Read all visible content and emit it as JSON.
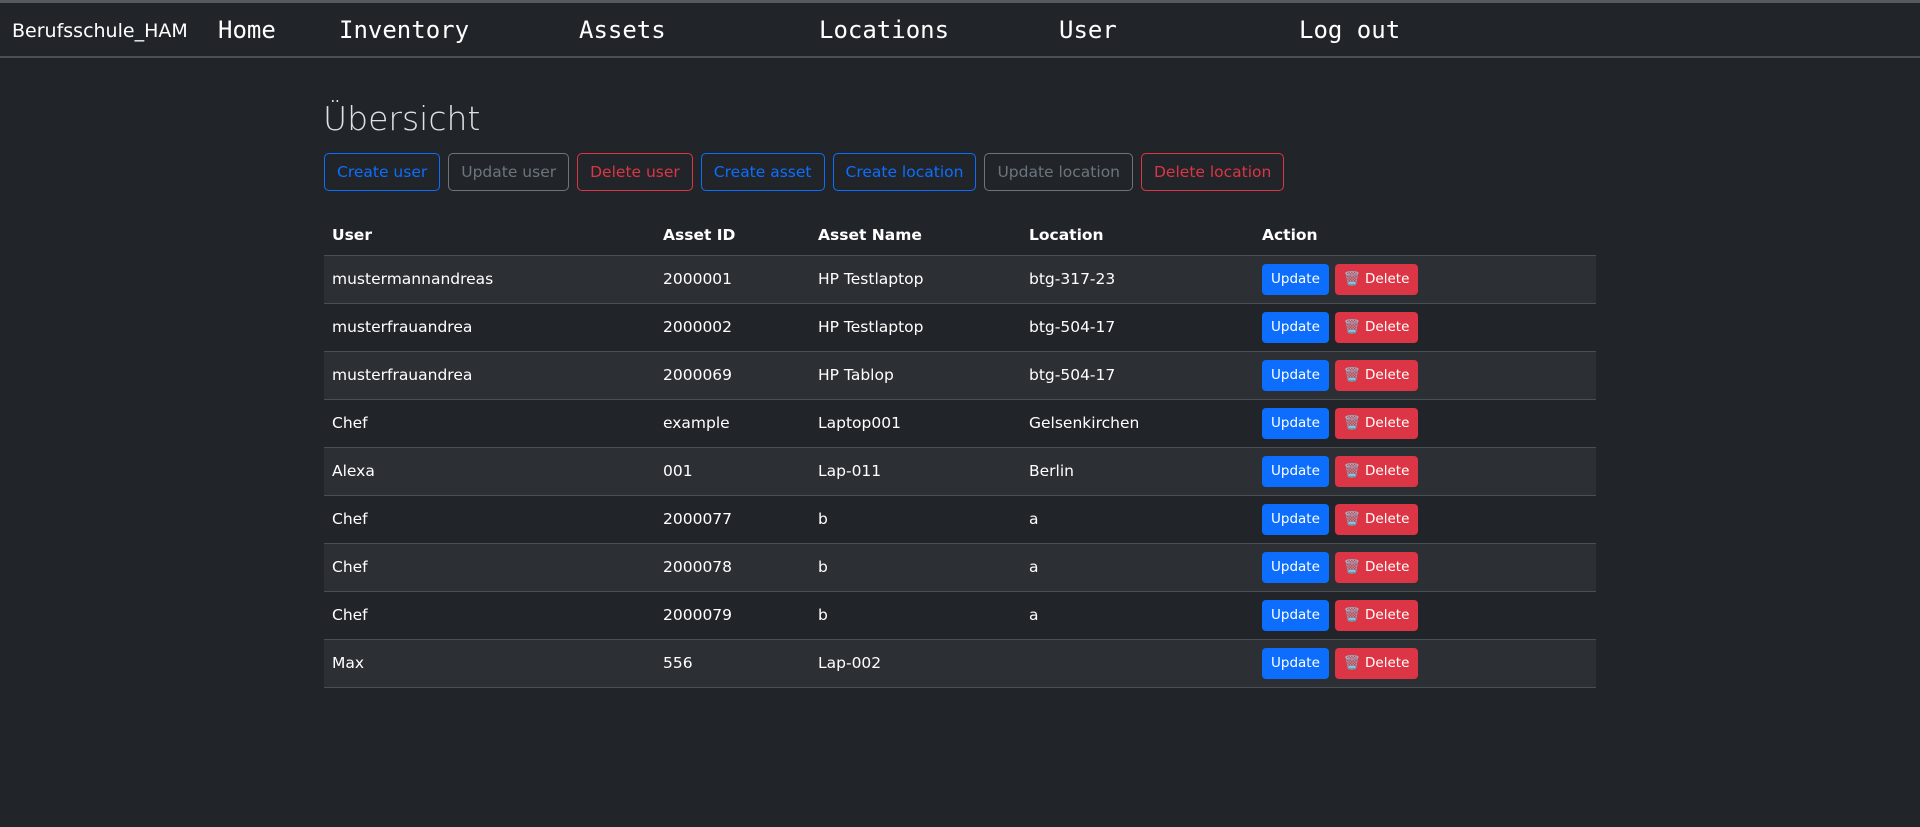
{
  "nav": {
    "brand": "Berufsschule_HAM",
    "links": [
      "Home",
      "Inventory",
      "Assets",
      "Locations",
      "User",
      "Log out"
    ]
  },
  "page": {
    "title": "Übersicht"
  },
  "actions": [
    {
      "label": "Create user",
      "variant": "primary"
    },
    {
      "label": "Update user",
      "variant": "secondary"
    },
    {
      "label": "Delete user",
      "variant": "danger"
    },
    {
      "label": "Create asset",
      "variant": "primary"
    },
    {
      "label": "Create location",
      "variant": "primary"
    },
    {
      "label": "Update location",
      "variant": "secondary"
    },
    {
      "label": "Delete location",
      "variant": "danger"
    }
  ],
  "table": {
    "headers": [
      "User",
      "Asset ID",
      "Asset Name",
      "Location",
      "Action"
    ],
    "update_label": "Update",
    "delete_label": "Delete",
    "delete_icon": "wastebasket-icon",
    "rows": [
      [
        "mustermannandreas",
        "2000001",
        "HP Testlaptop",
        "btg-317-23"
      ],
      [
        "musterfrauandrea",
        "2000002",
        "HP Testlaptop",
        "btg-504-17"
      ],
      [
        "musterfrauandrea",
        "2000069",
        "HP Tablop",
        "btg-504-17"
      ],
      [
        "Chef",
        "example",
        "Laptop001",
        "Gelsenkirchen"
      ],
      [
        "Alexa",
        "001",
        "Lap-011",
        "Berlin"
      ],
      [
        "Chef",
        "2000077",
        "b",
        "a"
      ],
      [
        "Chef",
        "2000078",
        "b",
        "a"
      ],
      [
        "Chef",
        "2000079",
        "b",
        "a"
      ],
      [
        "Max",
        "556",
        "Lap-002",
        ""
      ]
    ]
  },
  "colors": {
    "primary": "#0d6efd",
    "secondary": "#6c757d",
    "danger": "#dc3545",
    "background": "#212529"
  }
}
